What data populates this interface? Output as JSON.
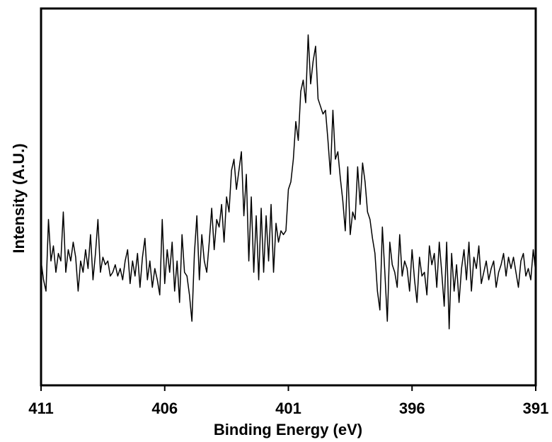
{
  "chart_data": {
    "type": "line",
    "x_label": "Binding Energy (eV)",
    "y_label": "Intensity (A.U.)",
    "xlim": [
      411,
      391
    ],
    "xticks": [
      411,
      406,
      401,
      396,
      391
    ],
    "ylim": [
      0,
      100
    ],
    "color": "#000000",
    "x": [
      411,
      410.9,
      410.8,
      410.7,
      410.6,
      410.5,
      410.4,
      410.3,
      410.2,
      410.1,
      410,
      409.9,
      409.8,
      409.7,
      409.6,
      409.5,
      409.4,
      409.3,
      409.2,
      409.1,
      409,
      408.9,
      408.8,
      408.7,
      408.6,
      408.5,
      408.4,
      408.3,
      408.2,
      408.1,
      408,
      407.9,
      407.8,
      407.7,
      407.6,
      407.5,
      407.4,
      407.3,
      407.2,
      407.1,
      407,
      406.9,
      406.8,
      406.7,
      406.6,
      406.5,
      406.4,
      406.3,
      406.2,
      406.1,
      406,
      405.9,
      405.8,
      405.7,
      405.6,
      405.5,
      405.4,
      405.3,
      405.2,
      405.1,
      405,
      404.9,
      404.8,
      404.7,
      404.6,
      404.5,
      404.4,
      404.3,
      404.2,
      404.1,
      404,
      403.9,
      403.8,
      403.7,
      403.6,
      403.5,
      403.4,
      403.3,
      403.2,
      403.1,
      403,
      402.9,
      402.8,
      402.7,
      402.6,
      402.5,
      402.4,
      402.3,
      402.2,
      402.1,
      402,
      401.9,
      401.8,
      401.7,
      401.6,
      401.5,
      401.4,
      401.3,
      401.2,
      401.1,
      401,
      400.9,
      400.8,
      400.7,
      400.6,
      400.5,
      400.4,
      400.3,
      400.2,
      400.1,
      400,
      399.9,
      399.8,
      399.7,
      399.6,
      399.5,
      399.4,
      399.3,
      399.2,
      399.1,
      399,
      398.9,
      398.8,
      398.7,
      398.6,
      398.5,
      398.4,
      398.3,
      398.2,
      398.1,
      398,
      397.9,
      397.8,
      397.7,
      397.6,
      397.5,
      397.4,
      397.3,
      397.2,
      397.1,
      397,
      396.9,
      396.8,
      396.7,
      396.6,
      396.5,
      396.4,
      396.3,
      396.2,
      396.1,
      396,
      395.9,
      395.8,
      395.7,
      395.6,
      395.5,
      395.4,
      395.3,
      395.2,
      395.1,
      395,
      394.9,
      394.8,
      394.7,
      394.6,
      394.5,
      394.4,
      394.3,
      394.2,
      394.1,
      394,
      393.9,
      393.8,
      393.7,
      393.6,
      393.5,
      393.4,
      393.3,
      393.2,
      393.1,
      393,
      392.9,
      392.8,
      392.7,
      392.6,
      392.5,
      392.4,
      392.3,
      392.2,
      392.1,
      392,
      391.9,
      391.8,
      391.7,
      391.6,
      391.5,
      391.4,
      391.3,
      391.2,
      391.1,
      391
    ],
    "values": [
      33,
      28,
      25,
      44,
      33,
      37,
      30,
      35,
      33,
      46,
      30,
      36,
      33,
      38,
      34,
      25,
      33,
      30,
      36,
      31,
      40,
      28,
      35,
      44,
      30,
      34,
      32,
      33,
      29,
      30,
      32,
      29,
      31,
      28,
      33,
      36,
      27,
      33,
      29,
      35,
      26,
      34,
      39,
      28,
      33,
      26,
      31,
      28,
      24,
      44,
      27,
      36,
      30,
      38,
      25,
      33,
      22,
      40,
      30,
      29,
      24,
      17,
      35,
      45,
      28,
      40,
      33,
      30,
      38,
      47,
      36,
      44,
      42,
      48,
      38,
      50,
      46,
      57,
      60,
      52,
      57,
      62,
      45,
      56,
      33,
      50,
      30,
      45,
      28,
      47,
      30,
      45,
      33,
      48,
      30,
      43,
      38,
      41,
      40,
      41,
      52,
      54,
      60,
      70,
      65,
      78,
      81,
      75,
      93,
      80,
      86,
      90,
      76,
      74,
      72,
      73,
      65,
      56,
      73,
      60,
      62,
      55,
      49,
      41,
      58,
      40,
      46,
      44,
      58,
      48,
      59,
      54,
      46,
      44,
      39,
      35,
      25,
      20,
      42,
      30,
      17,
      38,
      32,
      30,
      26,
      40,
      29,
      33,
      31,
      25,
      36,
      28,
      22,
      34,
      29,
      30,
      24,
      37,
      32,
      35,
      26,
      38,
      30,
      21,
      38,
      15,
      35,
      25,
      32,
      22,
      31,
      36,
      28,
      38,
      25,
      34,
      31,
      37,
      27,
      30,
      33,
      28,
      31,
      33,
      26,
      30,
      32,
      35,
      29,
      34,
      31,
      34,
      30,
      26,
      33,
      35,
      29,
      31,
      28,
      36,
      30
    ]
  }
}
